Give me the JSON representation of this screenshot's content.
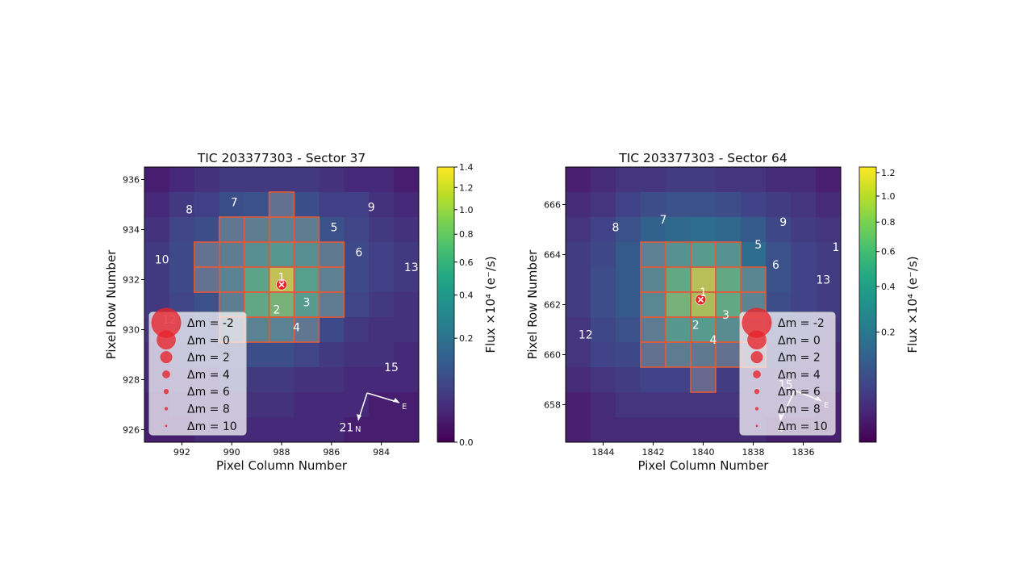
{
  "chart_data": [
    {
      "type": "heatmap",
      "title": "TIC 203377303 - Sector 37",
      "xlabel": "Pixel Column Number",
      "ylabel": "Pixel Row Number",
      "colorbar_label": "Flux ×10⁴ (e⁻/s)",
      "colormap": "viridis",
      "x_reversed": true,
      "xlim": [
        993.5,
        982.5
      ],
      "ylim": [
        925.5,
        936.5
      ],
      "xticks": [
        "992",
        "990",
        "988",
        "986",
        "984"
      ],
      "yticks": [
        "936",
        "934",
        "932",
        "930",
        "928",
        "926"
      ],
      "xtick_values": [
        992,
        990,
        988,
        986,
        984
      ],
      "ytick_values": [
        936,
        934,
        932,
        930,
        928,
        926
      ],
      "colorbar_ticks": [
        "1.4",
        "1.2",
        "1.0",
        "0.8",
        "0.6",
        "0.4",
        "0.2",
        "0.0"
      ],
      "colorbar_values": [
        1.4,
        1.2,
        1.0,
        0.8,
        0.6,
        0.4,
        0.2,
        0.0
      ],
      "colorbar_max": 1.4,
      "cols": [
        993,
        992,
        991,
        990,
        989,
        988,
        987,
        986,
        985,
        984,
        983
      ],
      "rows": [
        936,
        935,
        934,
        933,
        932,
        931,
        930,
        929,
        928,
        927,
        926
      ],
      "flux_grid": [
        [
          0.01,
          0.02,
          0.03,
          0.04,
          0.04,
          0.04,
          0.04,
          0.03,
          0.02,
          0.02,
          0.01
        ],
        [
          0.02,
          0.04,
          0.05,
          0.08,
          0.09,
          0.09,
          0.08,
          0.05,
          0.05,
          0.03,
          0.02
        ],
        [
          0.03,
          0.06,
          0.08,
          0.12,
          0.16,
          0.18,
          0.16,
          0.09,
          0.06,
          0.04,
          0.03
        ],
        [
          0.04,
          0.07,
          0.1,
          0.16,
          0.3,
          0.4,
          0.3,
          0.14,
          0.07,
          0.05,
          0.04
        ],
        [
          0.04,
          0.07,
          0.1,
          0.2,
          0.55,
          1.3,
          0.5,
          0.18,
          0.07,
          0.05,
          0.04
        ],
        [
          0.04,
          0.06,
          0.09,
          0.16,
          0.6,
          0.8,
          0.45,
          0.15,
          0.06,
          0.04,
          0.03
        ],
        [
          0.03,
          0.05,
          0.07,
          0.1,
          0.2,
          0.2,
          0.12,
          0.07,
          0.04,
          0.03,
          0.03
        ],
        [
          0.02,
          0.04,
          0.05,
          0.06,
          0.08,
          0.08,
          0.06,
          0.04,
          0.03,
          0.03,
          0.02
        ],
        [
          0.02,
          0.03,
          0.03,
          0.04,
          0.04,
          0.04,
          0.03,
          0.03,
          0.02,
          0.02,
          0.02
        ],
        [
          0.01,
          0.02,
          0.02,
          0.03,
          0.03,
          0.03,
          0.02,
          0.02,
          0.02,
          0.01,
          0.01
        ],
        [
          0.01,
          0.01,
          0.02,
          0.02,
          0.02,
          0.02,
          0.02,
          0.02,
          0.01,
          0.01,
          0.01
        ]
      ],
      "aperture": [
        [
          935,
          988
        ],
        [
          934,
          990
        ],
        [
          934,
          989
        ],
        [
          934,
          988
        ],
        [
          934,
          987
        ],
        [
          933,
          991
        ],
        [
          933,
          990
        ],
        [
          933,
          989
        ],
        [
          933,
          988
        ],
        [
          933,
          987
        ],
        [
          933,
          986
        ],
        [
          932,
          991
        ],
        [
          932,
          990
        ],
        [
          932,
          989
        ],
        [
          932,
          988
        ],
        [
          932,
          987
        ],
        [
          932,
          986
        ],
        [
          931,
          990
        ],
        [
          931,
          989
        ],
        [
          931,
          988
        ],
        [
          931,
          987
        ],
        [
          931,
          986
        ],
        [
          930,
          990
        ],
        [
          930,
          989
        ],
        [
          930,
          988
        ],
        [
          930,
          987
        ]
      ],
      "stars": [
        {
          "label": "1",
          "col": 988.0,
          "row": 932.1
        },
        {
          "label": "2",
          "col": 988.2,
          "row": 930.8
        },
        {
          "label": "3",
          "col": 987.0,
          "row": 931.1
        },
        {
          "label": "4",
          "col": 987.4,
          "row": 930.1
        },
        {
          "label": "5",
          "col": 985.9,
          "row": 934.1
        },
        {
          "label": "6",
          "col": 984.9,
          "row": 933.1
        },
        {
          "label": "7",
          "col": 989.9,
          "row": 935.1
        },
        {
          "label": "8",
          "col": 991.7,
          "row": 934.8
        },
        {
          "label": "9",
          "col": 984.4,
          "row": 934.9
        },
        {
          "label": "10",
          "col": 992.8,
          "row": 932.8
        },
        {
          "label": "12",
          "col": 992.5,
          "row": 930.4
        },
        {
          "label": "13",
          "col": 982.8,
          "row": 932.5
        },
        {
          "label": "15",
          "col": 983.6,
          "row": 928.5
        },
        {
          "label": "21",
          "col": 985.4,
          "row": 926.1
        }
      ],
      "target": {
        "col": 988.0,
        "row": 931.8
      },
      "compass": {
        "n_label": "N",
        "e_label": "E"
      }
    },
    {
      "type": "heatmap",
      "title": "TIC 203377303 - Sector 64",
      "xlabel": "Pixel Column Number",
      "ylabel": "Pixel Row Number",
      "colorbar_label": "Flux ×10⁴ (e⁻/s)",
      "colormap": "viridis",
      "x_reversed": true,
      "xlim": [
        1845.5,
        1834.5
      ],
      "ylim": [
        656.5,
        667.5
      ],
      "xticks": [
        "1844",
        "1842",
        "1840",
        "1838",
        "1836"
      ],
      "yticks": [
        "666",
        "664",
        "662",
        "660",
        "658"
      ],
      "xtick_values": [
        1844,
        1842,
        1840,
        1838,
        1836
      ],
      "ytick_values": [
        666,
        664,
        662,
        660,
        658
      ],
      "colorbar_ticks": [
        "1.2",
        "1.0",
        "0.8",
        "0.6",
        "0.4",
        "0.2"
      ],
      "colorbar_values": [
        1.2,
        1.0,
        0.8,
        0.6,
        0.4,
        0.2
      ],
      "colorbar_max": 1.25,
      "cols": [
        1845,
        1844,
        1843,
        1842,
        1841,
        1840,
        1839,
        1838,
        1837,
        1836,
        1835
      ],
      "rows": [
        667,
        666,
        665,
        664,
        663,
        662,
        661,
        660,
        659,
        658,
        657
      ],
      "flux_grid": [
        [
          0.01,
          0.02,
          0.03,
          0.03,
          0.04,
          0.04,
          0.03,
          0.03,
          0.02,
          0.02,
          0.01
        ],
        [
          0.02,
          0.03,
          0.05,
          0.07,
          0.08,
          0.08,
          0.07,
          0.05,
          0.04,
          0.03,
          0.02
        ],
        [
          0.03,
          0.05,
          0.08,
          0.12,
          0.15,
          0.16,
          0.14,
          0.1,
          0.06,
          0.04,
          0.03
        ],
        [
          0.04,
          0.06,
          0.1,
          0.16,
          0.3,
          0.4,
          0.3,
          0.16,
          0.08,
          0.05,
          0.04
        ],
        [
          0.04,
          0.07,
          0.1,
          0.2,
          0.55,
          1.1,
          0.55,
          0.2,
          0.08,
          0.05,
          0.04
        ],
        [
          0.04,
          0.07,
          0.1,
          0.22,
          0.7,
          1.0,
          0.55,
          0.18,
          0.07,
          0.05,
          0.04
        ],
        [
          0.03,
          0.06,
          0.08,
          0.14,
          0.35,
          0.4,
          0.25,
          0.1,
          0.05,
          0.04,
          0.03
        ],
        [
          0.03,
          0.05,
          0.06,
          0.08,
          0.14,
          0.12,
          0.08,
          0.05,
          0.04,
          0.03,
          0.02
        ],
        [
          0.02,
          0.03,
          0.04,
          0.05,
          0.05,
          0.05,
          0.04,
          0.03,
          0.03,
          0.02,
          0.02
        ],
        [
          0.01,
          0.02,
          0.03,
          0.03,
          0.03,
          0.03,
          0.03,
          0.02,
          0.02,
          0.02,
          0.01
        ],
        [
          0.01,
          0.02,
          0.02,
          0.02,
          0.02,
          0.02,
          0.02,
          0.02,
          0.01,
          0.01,
          0.01
        ]
      ],
      "aperture": [
        [
          664,
          1842
        ],
        [
          664,
          1841
        ],
        [
          664,
          1840
        ],
        [
          664,
          1839
        ],
        [
          663,
          1842
        ],
        [
          663,
          1841
        ],
        [
          663,
          1840
        ],
        [
          663,
          1839
        ],
        [
          663,
          1838
        ],
        [
          662,
          1842
        ],
        [
          662,
          1841
        ],
        [
          662,
          1840
        ],
        [
          662,
          1839
        ],
        [
          662,
          1838
        ],
        [
          661,
          1842
        ],
        [
          661,
          1841
        ],
        [
          661,
          1840
        ],
        [
          661,
          1839
        ],
        [
          661,
          1838
        ],
        [
          660,
          1842
        ],
        [
          660,
          1841
        ],
        [
          660,
          1840
        ],
        [
          660,
          1839
        ],
        [
          660,
          1838
        ],
        [
          659,
          1840
        ]
      ],
      "stars": [
        {
          "label": "1",
          "col": 1840.0,
          "row": 662.5
        },
        {
          "label": "2",
          "col": 1840.3,
          "row": 661.2
        },
        {
          "label": "3",
          "col": 1839.1,
          "row": 661.6
        },
        {
          "label": "4",
          "col": 1839.6,
          "row": 660.6
        },
        {
          "label": "5",
          "col": 1837.8,
          "row": 664.4
        },
        {
          "label": "6",
          "col": 1837.1,
          "row": 663.6
        },
        {
          "label": "7",
          "col": 1841.6,
          "row": 665.4
        },
        {
          "label": "8",
          "col": 1843.5,
          "row": 665.1
        },
        {
          "label": "9",
          "col": 1836.8,
          "row": 665.3
        },
        {
          "label": "1",
          "col": 1834.7,
          "row": 664.3
        },
        {
          "label": "12",
          "col": 1844.7,
          "row": 660.8
        },
        {
          "label": "13",
          "col": 1835.2,
          "row": 663.0
        },
        {
          "label": "15",
          "col": 1836.7,
          "row": 658.8
        }
      ],
      "target": {
        "col": 1840.1,
        "row": 662.2
      },
      "compass": {
        "n_label": "N",
        "e_label": "E"
      }
    }
  ],
  "legend": [
    {
      "label": "Δm =  -2",
      "dm": -2
    },
    {
      "label": "Δm =  0",
      "dm": 0
    },
    {
      "label": "Δm =  2",
      "dm": 2
    },
    {
      "label": "Δm =  4",
      "dm": 4
    },
    {
      "label": "Δm =  6",
      "dm": 6
    },
    {
      "label": "Δm =  8",
      "dm": 8
    },
    {
      "label": "Δm =  10",
      "dm": 10
    }
  ]
}
